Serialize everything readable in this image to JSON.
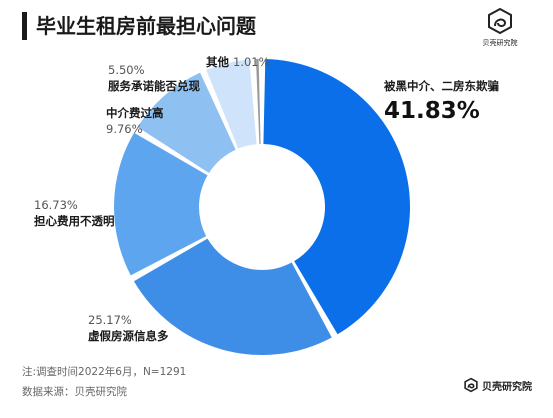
{
  "title": "毕业生租房前最担心问题",
  "logo": {
    "name": "贝壳研究院",
    "icon": "beike-logo-icon"
  },
  "chart_data": {
    "type": "pie",
    "donut": true,
    "categories": [
      "被黑中介、二房东欺骗",
      "虚假房源信息多",
      "担心费用不透明",
      "中介费过高",
      "服务承诺能否兑现",
      "其他"
    ],
    "values": [
      41.83,
      25.17,
      16.73,
      9.76,
      5.5,
      1.01
    ],
    "labels": [
      "41.83%",
      "25.17%",
      "16.73%",
      "9.76%",
      "5.50%",
      "1.01%"
    ],
    "colors": [
      "#0a6fe8",
      "#3e8ee8",
      "#5da6ef",
      "#8ec1f2",
      "#cfe4fa",
      "#9a9a9a"
    ]
  },
  "notes": {
    "survey": "注:调查时间2022年6月，N=1291",
    "source": "数据来源：贝壳研究院"
  }
}
